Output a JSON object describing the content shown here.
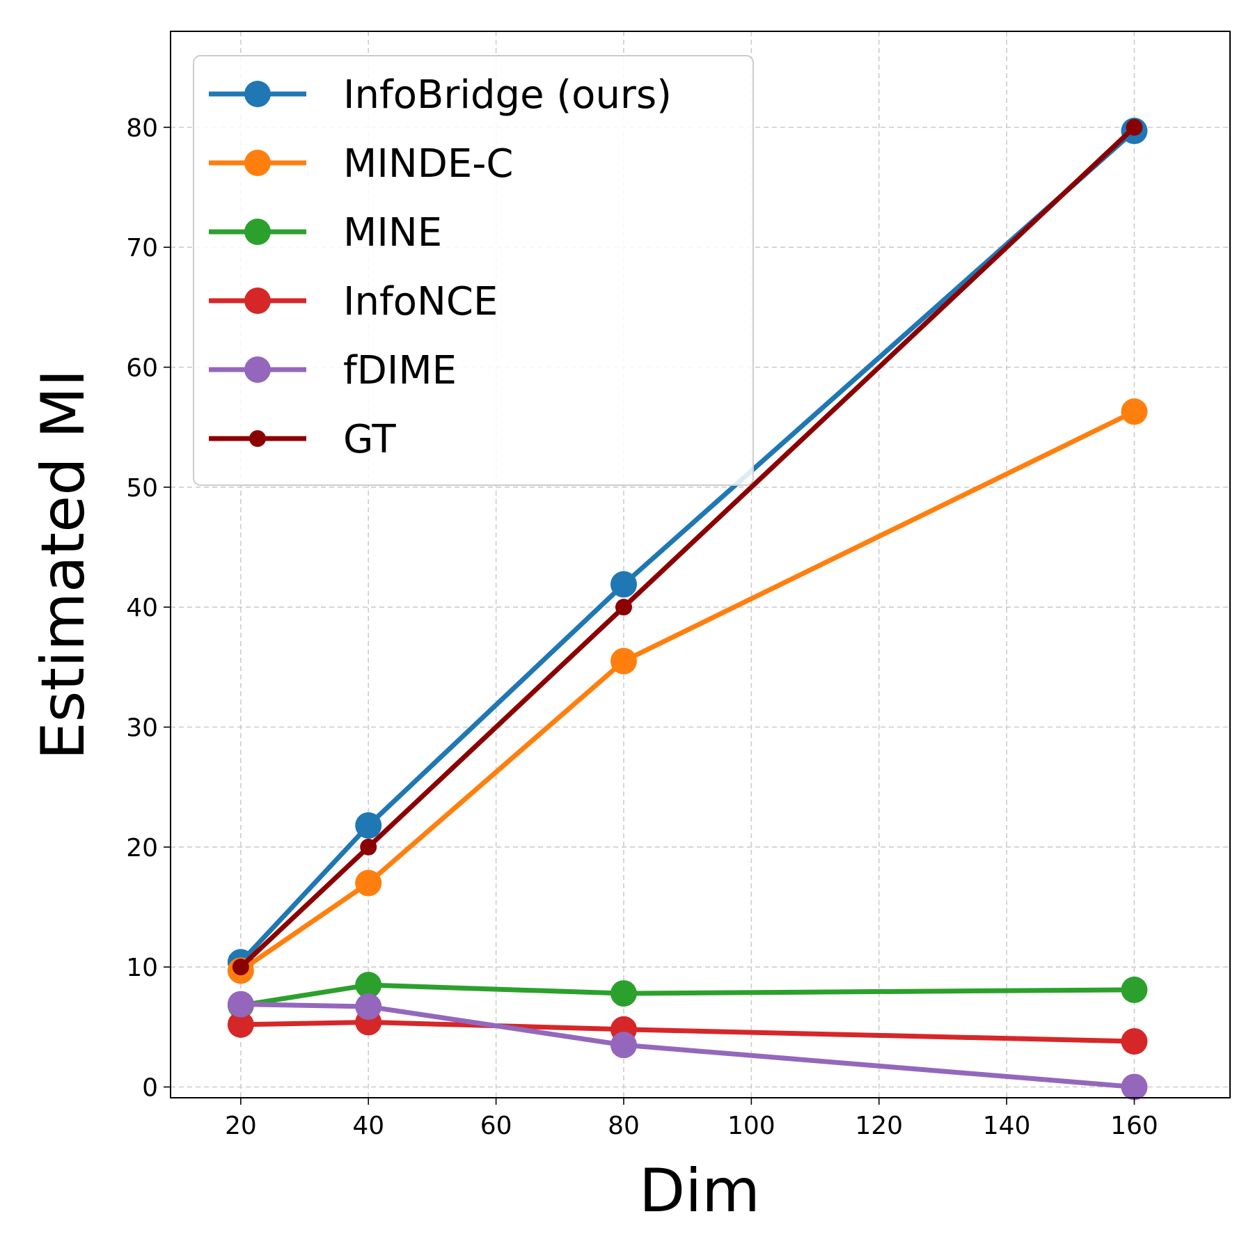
{
  "chart_data": {
    "type": "line",
    "title": "",
    "xlabel": "Dim",
    "ylabel": "Estimated MI",
    "xlim": [
      9,
      175
    ],
    "ylim": [
      -0.9,
      88
    ],
    "xticks": [
      20,
      40,
      60,
      80,
      100,
      120,
      140,
      160
    ],
    "yticks": [
      0,
      10,
      20,
      30,
      40,
      50,
      60,
      70,
      80
    ],
    "grid": true,
    "legend_position": "top-left",
    "x": [
      20,
      40,
      80,
      160
    ],
    "series": [
      {
        "name": "InfoBridge (ours)",
        "color": "#1f77b4",
        "values": [
          10.4,
          21.8,
          41.9,
          79.7
        ],
        "marker": "large"
      },
      {
        "name": "MINDE-C",
        "color": "#ff7f0e",
        "values": [
          9.7,
          17.0,
          35.5,
          56.3
        ],
        "marker": "large"
      },
      {
        "name": "MINE",
        "color": "#2ca02c",
        "values": [
          6.8,
          8.5,
          7.8,
          8.1
        ],
        "marker": "large"
      },
      {
        "name": "InfoNCE",
        "color": "#d62728",
        "values": [
          5.2,
          5.4,
          4.8,
          3.8
        ],
        "marker": "large"
      },
      {
        "name": "fDIME",
        "color": "#9467bd",
        "values": [
          6.9,
          6.7,
          3.5,
          0.0
        ],
        "marker": "large"
      },
      {
        "name": "GT",
        "color": "#8b0000",
        "values": [
          10,
          20,
          40,
          80
        ],
        "marker": "small"
      }
    ]
  }
}
